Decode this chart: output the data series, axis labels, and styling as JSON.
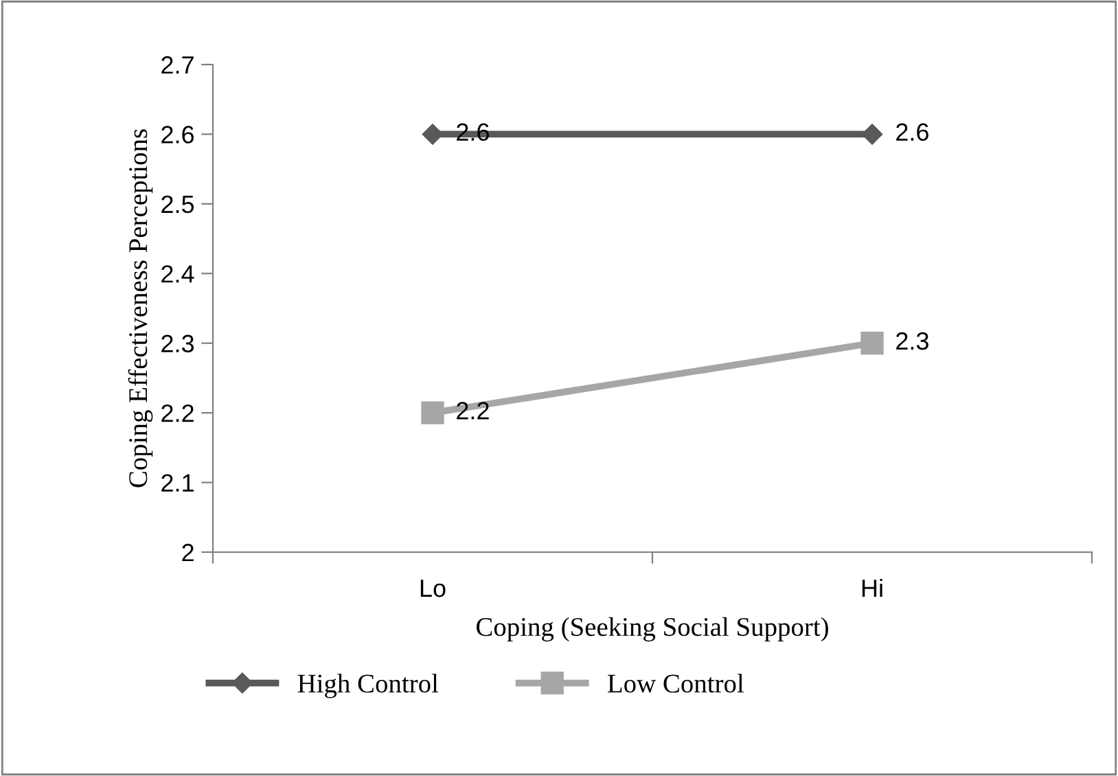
{
  "chart_data": {
    "type": "line",
    "xlabel": "Coping (Seeking Social Support)",
    "ylabel": "Coping Effectiveness Perceptions",
    "categories": [
      "Lo",
      "Hi"
    ],
    "series": [
      {
        "name": "High Control",
        "color": "#595959",
        "values": [
          2.6,
          2.6
        ],
        "marker": "diamond"
      },
      {
        "name": "Low Control",
        "color": "#a6a6a6",
        "values": [
          2.2,
          2.3
        ],
        "marker": "square"
      }
    ],
    "ylim": [
      2,
      2.7
    ],
    "yticks": [
      2,
      2.1,
      2.2,
      2.3,
      2.4,
      2.5,
      2.6,
      2.7
    ],
    "grid": false,
    "legend": "bottom",
    "data_labels": true,
    "line_style": "solid"
  }
}
